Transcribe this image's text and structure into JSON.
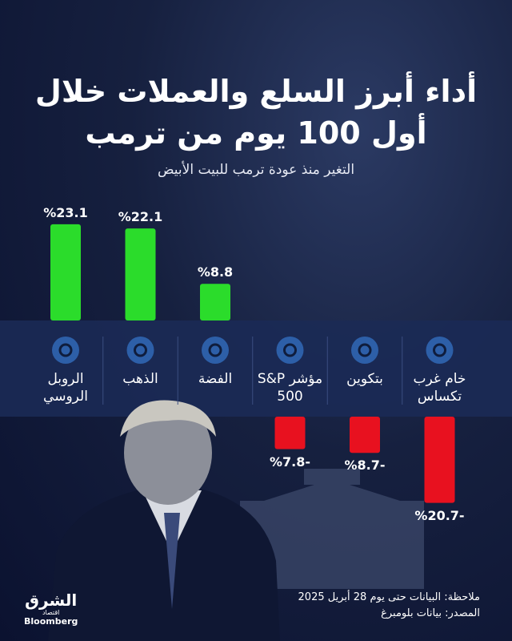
{
  "chart_data": {
    "type": "bar",
    "title": "أداء أبرز السلع والعملات خلال أول 100 يوم من ترمب",
    "subtitle": "التغير منذ عودة ترمب للبيت الأبيض",
    "categories": [
      "الروبل الروسي",
      "الذهب",
      "الفضة",
      "مؤشر S&P 500",
      "بتكوين",
      "خام غرب تكساس"
    ],
    "values": [
      23.1,
      22.1,
      8.8,
      -7.8,
      -8.7,
      -20.7
    ],
    "value_labels": [
      "%23.1",
      "%22.1",
      "%8.8",
      "%7.8-",
      "%8.7-",
      "%20.7-"
    ],
    "positive_color": "#2bdc2b",
    "negative_color": "#e8111f",
    "note": "ملاحظة: البيانات حتى يوم 28 أبريل 2025",
    "source": "المصدر: بيانات بلومبرغ"
  },
  "brand": {
    "name": "الشرق",
    "tag": "اقتصاد",
    "partner": "Bloomberg"
  }
}
